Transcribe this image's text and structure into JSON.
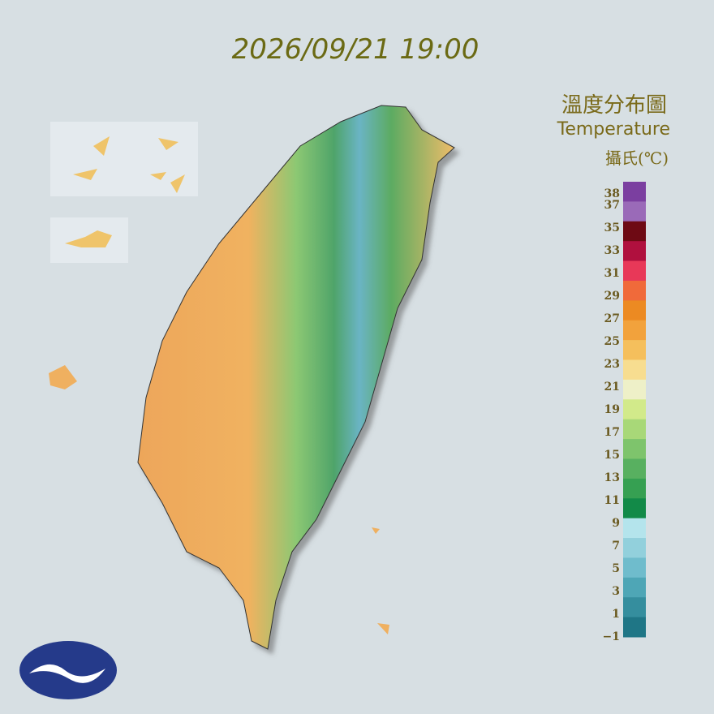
{
  "header": {
    "timestamp": "2026/09/21 19:00"
  },
  "legend": {
    "title": "溫度分布圖",
    "subtitle": "Temperature",
    "unit": "攝氏(℃)",
    "ticks": [
      38,
      37,
      35,
      33,
      31,
      29,
      27,
      25,
      23,
      21,
      19,
      17,
      15,
      13,
      11,
      9,
      7,
      5,
      3,
      1,
      {
        "value": -1,
        "label": "−1"
      }
    ],
    "colors": [
      "#7b3fa0",
      "#9a6ab8",
      "#6e0a14",
      "#b0103e",
      "#e83858",
      "#f06a3a",
      "#ec8a22",
      "#f2a23c",
      "#f5bf5c",
      "#f7dd90",
      "#eef0c8",
      "#d2ea8a",
      "#a8d878",
      "#7ec46c",
      "#58b060",
      "#36a052",
      "#128a48",
      "#b4e4ec",
      "#92d0dc",
      "#6fbccc",
      "#4ea6b6",
      "#358e9e",
      "#1f7686"
    ]
  }
}
